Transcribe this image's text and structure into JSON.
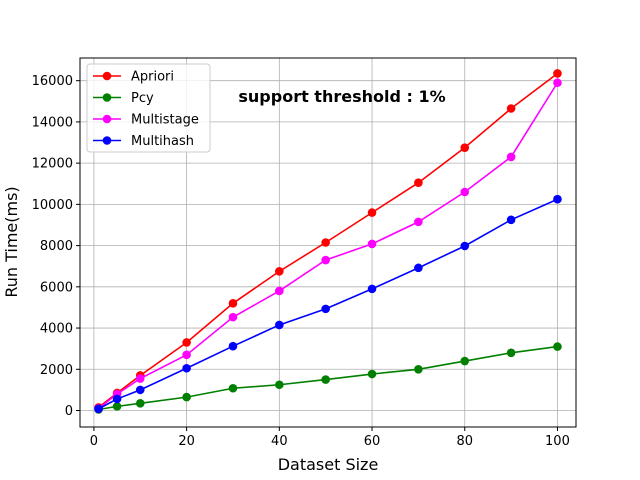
{
  "chart_data": {
    "type": "line",
    "title": "",
    "annotation": "support threshold : 1%",
    "xlabel": "Dataset Size",
    "ylabel": "Run Time(ms)",
    "x": [
      1,
      5,
      10,
      20,
      30,
      40,
      50,
      60,
      70,
      80,
      90,
      100
    ],
    "xlim": [
      -3,
      104
    ],
    "ylim": [
      -800,
      17100
    ],
    "xticks": [
      0,
      20,
      40,
      60,
      80,
      100
    ],
    "yticks": [
      0,
      2000,
      4000,
      6000,
      8000,
      10000,
      12000,
      14000,
      16000
    ],
    "grid": true,
    "legend_position": "top-left",
    "series": [
      {
        "name": "Apriori",
        "color": "#ff0000",
        "values": [
          150,
          850,
          1700,
          3300,
          5200,
          6750,
          8150,
          9600,
          11050,
          12750,
          14650,
          16350
        ]
      },
      {
        "name": "Pcy",
        "color": "#008000",
        "values": [
          50,
          200,
          350,
          650,
          1080,
          1250,
          1500,
          1770,
          2000,
          2400,
          2800,
          3100
        ]
      },
      {
        "name": "Multistage",
        "color": "#ff00ff",
        "values": [
          100,
          800,
          1550,
          2700,
          4530,
          5800,
          7300,
          8080,
          9150,
          10600,
          12300,
          15900
        ]
      },
      {
        "name": "Multihash",
        "color": "#0000ff",
        "values": [
          80,
          560,
          1000,
          2050,
          3120,
          4150,
          4930,
          5900,
          6920,
          7980,
          9250,
          10250
        ]
      }
    ]
  }
}
